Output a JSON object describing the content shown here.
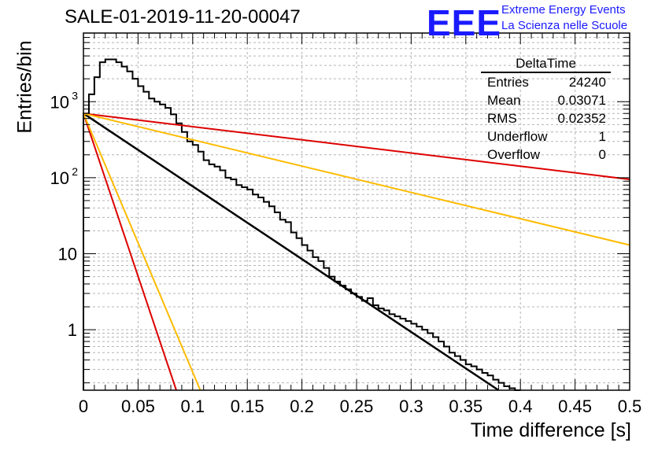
{
  "header": {
    "title": "SALE-01-2019-11-20-00047",
    "logo_mark": "EEE",
    "logo_line1": "Extreme Energy Events",
    "logo_line2": "La Scienza nelle Scuole"
  },
  "stats_box": {
    "name": "DeltaTime",
    "rows": [
      {
        "label": "Entries",
        "value": "24240"
      },
      {
        "label": "Mean",
        "value": "0.03071"
      },
      {
        "label": "RMS",
        "value": "0.02352"
      },
      {
        "label": "Underflow",
        "value": "1"
      },
      {
        "label": "Overflow",
        "value": "0"
      }
    ]
  },
  "colors": {
    "histogram": "#000000",
    "fit": "#000000",
    "red": "#dd0000",
    "orange": "#ffbb00",
    "grid": "#b4b4b4"
  },
  "chart_data": {
    "type": "line",
    "xlabel": "Time difference [s]",
    "ylabel": "Entries/bin",
    "xlim": [
      0,
      0.5
    ],
    "ylim": [
      0.16,
      8000
    ],
    "yscale": "log",
    "grid": true,
    "x_ticks": [
      "0",
      "0.05",
      "0.1",
      "0.15",
      "0.2",
      "0.25",
      "0.3",
      "0.35",
      "0.4",
      "0.45",
      "0.5"
    ],
    "y_ticks": [
      {
        "value": 1,
        "label": "1"
      },
      {
        "value": 10,
        "label": "10"
      },
      {
        "value": 100,
        "label": "10",
        "exp": "2"
      },
      {
        "value": 1000,
        "label": "10",
        "exp": "3"
      }
    ],
    "histogram": {
      "bin_width": 0.005,
      "x_start": 0.0,
      "values": [
        700,
        1250,
        2100,
        3300,
        3600,
        3600,
        3300,
        2900,
        2500,
        2000,
        1600,
        1350,
        1100,
        1000,
        920,
        830,
        680,
        520,
        400,
        300,
        270,
        220,
        170,
        150,
        140,
        125,
        100,
        95,
        80,
        75,
        70,
        60,
        55,
        48,
        42,
        35,
        28,
        26,
        19,
        16,
        13,
        11,
        9,
        8,
        6.5,
        5,
        4.3,
        3.8,
        3.4,
        3,
        2.7,
        2.4,
        2.6,
        2.1,
        1.9,
        1.8,
        1.6,
        1.5,
        1.4,
        1.3,
        1.2,
        1.1,
        1,
        0.9,
        0.8,
        0.7,
        0.6,
        0.5,
        0.45,
        0.4,
        0.35,
        0.33,
        0.3,
        0.27,
        0.25,
        0.22,
        0.2,
        0.18,
        0.17,
        0.16
      ]
    },
    "series": [
      {
        "color": "#000000",
        "values_at_x": [
          {
            "x": 0,
            "y": 700
          },
          {
            "x": 0.38,
            "y": 0.16
          }
        ]
      },
      {
        "color": "#dd0000",
        "values_at_x": [
          {
            "x": 0,
            "y": 700
          },
          {
            "x": 0.5,
            "y": 95
          }
        ]
      },
      {
        "color": "#ffbb00",
        "values_at_x": [
          {
            "x": 0,
            "y": 700
          },
          {
            "x": 0.5,
            "y": 13
          }
        ]
      },
      {
        "color": "#dd0000",
        "values_at_x": [
          {
            "x": 0,
            "y": 700
          },
          {
            "x": 0.085,
            "y": 0.16
          }
        ]
      },
      {
        "color": "#ffbb00",
        "values_at_x": [
          {
            "x": 0,
            "y": 700
          },
          {
            "x": 0.107,
            "y": 0.16
          }
        ]
      }
    ]
  }
}
